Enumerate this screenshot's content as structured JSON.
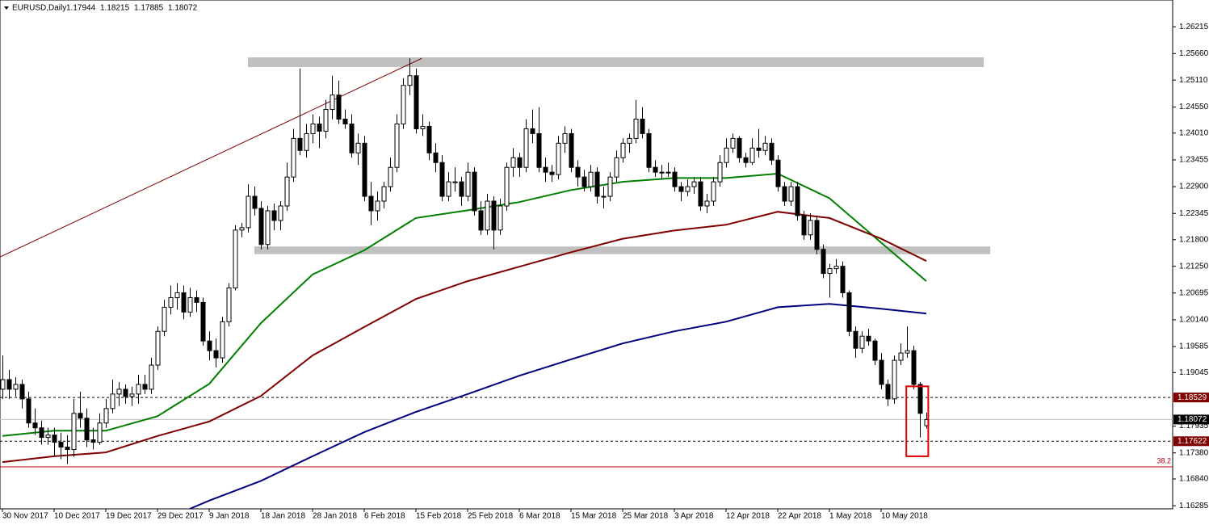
{
  "chart_data": {
    "type": "candlestick",
    "title": "EURUSD,Daily",
    "quote": [
      1.17944,
      1.18215,
      1.17885,
      1.18072
    ],
    "xlim": [
      -0.375,
      181.125
    ],
    "ylim": [
      1.1622,
      1.2677
    ],
    "yticks": [
      {
        "value": 1.26215,
        "label": "1.26215"
      },
      {
        "value": 1.2566,
        "label": "1.25660"
      },
      {
        "value": 1.2511,
        "label": "1.25110"
      },
      {
        "value": 1.2455,
        "label": "1.24550"
      },
      {
        "value": 1.2401,
        "label": "1.24010"
      },
      {
        "value": 1.23455,
        "label": "1.23455"
      },
      {
        "value": 1.229,
        "label": "1.22900"
      },
      {
        "value": 1.22345,
        "label": "1.22345"
      },
      {
        "value": 1.218,
        "label": "1.21800"
      },
      {
        "value": 1.2125,
        "label": "1.21250"
      },
      {
        "value": 1.20695,
        "label": "1.20695"
      },
      {
        "value": 1.2014,
        "label": "1.20140"
      },
      {
        "value": 1.19585,
        "label": "1.19585"
      },
      {
        "value": 1.19045,
        "label": "1.19045"
      },
      {
        "value": 1.17935,
        "label": "1.17935"
      },
      {
        "value": 1.1738,
        "label": "1.17380"
      },
      {
        "value": 1.1684,
        "label": "1.16840"
      },
      {
        "value": 1.16285,
        "label": "1.16285"
      }
    ],
    "xticks": [
      {
        "value": 0,
        "label": "30 Nov 2017"
      },
      {
        "value": 8,
        "label": "10 Dec 2017"
      },
      {
        "value": 16,
        "label": "19 Dec 2017"
      },
      {
        "value": 24,
        "label": "29 Dec 2017"
      },
      {
        "value": 32,
        "label": "9 Jan 2018"
      },
      {
        "value": 40,
        "label": "18 Jan 2018"
      },
      {
        "value": 48,
        "label": "28 Jan 2018"
      },
      {
        "value": 56,
        "label": "6 Feb 2018"
      },
      {
        "value": 64,
        "label": "15 Feb 2018"
      },
      {
        "value": 72,
        "label": "25 Feb 2018"
      },
      {
        "value": 80,
        "label": "6 Mar 2018"
      },
      {
        "value": 88,
        "label": "15 Mar 2018"
      },
      {
        "value": 96,
        "label": "25 Mar 2018"
      },
      {
        "value": 104,
        "label": "3 Apr 2018"
      },
      {
        "value": 112,
        "label": "12 Apr 2018"
      },
      {
        "value": 120,
        "label": "22 Apr 2018"
      },
      {
        "value": 128,
        "label": "1 May 2018"
      },
      {
        "value": 136,
        "label": "10 May 2018"
      }
    ],
    "ohlc": [
      [
        1.187,
        1.194,
        1.185,
        1.189
      ],
      [
        1.189,
        1.191,
        1.185,
        1.187
      ],
      [
        1.187,
        1.1895,
        1.1855,
        1.188
      ],
      [
        1.188,
        1.189,
        1.183,
        1.185
      ],
      [
        1.185,
        1.1865,
        1.179,
        1.18
      ],
      [
        1.18,
        1.183,
        1.1775,
        1.179
      ],
      [
        1.179,
        1.1805,
        1.1755,
        1.177
      ],
      [
        1.177,
        1.179,
        1.1755,
        1.1775
      ],
      [
        1.1775,
        1.179,
        1.173,
        1.176
      ],
      [
        1.176,
        1.178,
        1.1725,
        1.175
      ],
      [
        1.175,
        1.1775,
        1.1715,
        1.1745
      ],
      [
        1.1745,
        1.185,
        1.173,
        1.182
      ],
      [
        1.182,
        1.1865,
        1.179,
        1.181
      ],
      [
        1.181,
        1.183,
        1.175,
        1.1765
      ],
      [
        1.1765,
        1.179,
        1.1745,
        1.176
      ],
      [
        1.176,
        1.182,
        1.1755,
        1.18
      ],
      [
        1.18,
        1.185,
        1.179,
        1.183
      ],
      [
        1.183,
        1.189,
        1.182,
        1.186
      ],
      [
        1.186,
        1.1885,
        1.1835,
        1.187
      ],
      [
        1.187,
        1.188,
        1.184,
        1.1855
      ],
      [
        1.1855,
        1.1875,
        1.1835,
        1.186
      ],
      [
        1.186,
        1.19,
        1.184,
        1.188
      ],
      [
        1.188,
        1.19,
        1.186,
        1.187
      ],
      [
        1.187,
        1.1935,
        1.186,
        1.192
      ],
      [
        1.192,
        1.2,
        1.191,
        1.199
      ],
      [
        1.199,
        1.2055,
        1.198,
        1.204
      ],
      [
        1.204,
        1.2085,
        1.2025,
        1.206
      ],
      [
        1.206,
        1.209,
        1.2035,
        1.207
      ],
      [
        1.207,
        1.2085,
        1.2015,
        1.203
      ],
      [
        1.203,
        1.208,
        1.202,
        1.206
      ],
      [
        1.206,
        1.2075,
        1.203,
        1.205
      ],
      [
        1.205,
        1.206,
        1.196,
        1.197
      ],
      [
        1.197,
        1.199,
        1.193,
        1.195
      ],
      [
        1.195,
        1.1975,
        1.1915,
        1.1935
      ],
      [
        1.1935,
        1.202,
        1.1925,
        1.201
      ],
      [
        1.201,
        1.209,
        1.2,
        1.208
      ],
      [
        1.208,
        1.221,
        1.2075,
        1.22
      ],
      [
        1.22,
        1.2215,
        1.2185,
        1.2205
      ],
      [
        1.2205,
        1.2295,
        1.2195,
        1.227
      ],
      [
        1.227,
        1.229,
        1.223,
        1.2245
      ],
      [
        1.2245,
        1.226,
        1.216,
        1.217
      ],
      [
        1.217,
        1.225,
        1.216,
        1.224
      ],
      [
        1.224,
        1.2255,
        1.22,
        1.222
      ],
      [
        1.222,
        1.226,
        1.22,
        1.225
      ],
      [
        1.225,
        1.234,
        1.224,
        1.231
      ],
      [
        1.231,
        1.241,
        1.23,
        1.239
      ],
      [
        1.239,
        1.2535,
        1.2355,
        1.2365
      ],
      [
        1.2365,
        1.242,
        1.235,
        1.24
      ],
      [
        1.24,
        1.244,
        1.238,
        1.242
      ],
      [
        1.242,
        1.2435,
        1.237,
        1.2405
      ],
      [
        1.2405,
        1.247,
        1.239,
        1.245
      ],
      [
        1.245,
        1.252,
        1.243,
        1.248
      ],
      [
        1.248,
        1.251,
        1.242,
        1.243
      ],
      [
        1.243,
        1.245,
        1.241,
        1.242
      ],
      [
        1.242,
        1.244,
        1.235,
        1.236
      ],
      [
        1.236,
        1.24,
        1.2335,
        1.238
      ],
      [
        1.238,
        1.2395,
        1.226,
        1.227
      ],
      [
        1.227,
        1.23,
        1.221,
        1.224
      ],
      [
        1.224,
        1.228,
        1.222,
        1.226
      ],
      [
        1.226,
        1.23,
        1.2245,
        1.229
      ],
      [
        1.229,
        1.235,
        1.228,
        1.233
      ],
      [
        1.233,
        1.244,
        1.232,
        1.242
      ],
      [
        1.242,
        1.2515,
        1.241,
        1.25
      ],
      [
        1.25,
        1.2556,
        1.248,
        1.252
      ],
      [
        1.252,
        1.2535,
        1.24,
        1.241
      ],
      [
        1.241,
        1.244,
        1.2395,
        1.2415
      ],
      [
        1.2415,
        1.2425,
        1.2345,
        1.236
      ],
      [
        1.236,
        1.238,
        1.232,
        1.234
      ],
      [
        1.234,
        1.2355,
        1.226,
        1.227
      ],
      [
        1.227,
        1.232,
        1.226,
        1.23
      ],
      [
        1.23,
        1.233,
        1.228,
        1.23
      ],
      [
        1.23,
        1.231,
        1.225,
        1.227
      ],
      [
        1.227,
        1.234,
        1.226,
        1.232
      ],
      [
        1.232,
        1.233,
        1.223,
        1.224
      ],
      [
        1.224,
        1.226,
        1.219,
        1.22
      ],
      [
        1.22,
        1.2275,
        1.219,
        1.226
      ],
      [
        1.226,
        1.227,
        1.216,
        1.22
      ],
      [
        1.22,
        1.2265,
        1.219,
        1.225
      ],
      [
        1.225,
        1.234,
        1.224,
        1.233
      ],
      [
        1.233,
        1.237,
        1.231,
        1.235
      ],
      [
        1.235,
        1.236,
        1.231,
        1.233
      ],
      [
        1.233,
        1.243,
        1.232,
        1.241
      ],
      [
        1.241,
        1.245,
        1.238,
        1.24
      ],
      [
        1.24,
        1.2455,
        1.232,
        1.233
      ],
      [
        1.233,
        1.235,
        1.23,
        1.232
      ],
      [
        1.232,
        1.2335,
        1.23,
        1.2315
      ],
      [
        1.2315,
        1.2395,
        1.2305,
        1.238
      ],
      [
        1.238,
        1.2415,
        1.236,
        1.24
      ],
      [
        1.24,
        1.241,
        1.232,
        1.233
      ],
      [
        1.233,
        1.2345,
        1.229,
        1.231
      ],
      [
        1.231,
        1.2325,
        1.228,
        1.229
      ],
      [
        1.229,
        1.2335,
        1.228,
        1.232
      ],
      [
        1.232,
        1.233,
        1.2255,
        1.227
      ],
      [
        1.227,
        1.229,
        1.2245,
        1.227
      ],
      [
        1.227,
        1.232,
        1.226,
        1.231
      ],
      [
        1.231,
        1.2365,
        1.23,
        1.235
      ],
      [
        1.235,
        1.239,
        1.234,
        1.238
      ],
      [
        1.238,
        1.24,
        1.236,
        1.239
      ],
      [
        1.239,
        1.247,
        1.238,
        1.243
      ],
      [
        1.243,
        1.2455,
        1.239,
        1.24
      ],
      [
        1.24,
        1.241,
        1.232,
        1.233
      ],
      [
        1.233,
        1.2345,
        1.231,
        1.232
      ],
      [
        1.232,
        1.2335,
        1.2305,
        1.232
      ],
      [
        1.232,
        1.234,
        1.231,
        1.232
      ],
      [
        1.232,
        1.233,
        1.228,
        1.229
      ],
      [
        1.229,
        1.23,
        1.226,
        1.228
      ],
      [
        1.228,
        1.2305,
        1.227,
        1.229
      ],
      [
        1.229,
        1.231,
        1.2275,
        1.23
      ],
      [
        1.23,
        1.231,
        1.224,
        1.225
      ],
      [
        1.225,
        1.2275,
        1.2235,
        1.226
      ],
      [
        1.226,
        1.231,
        1.225,
        1.23
      ],
      [
        1.23,
        1.2355,
        1.229,
        1.234
      ],
      [
        1.234,
        1.239,
        1.233,
        1.237
      ],
      [
        1.237,
        1.24,
        1.236,
        1.239
      ],
      [
        1.239,
        1.2395,
        1.234,
        1.235
      ],
      [
        1.235,
        1.236,
        1.233,
        1.234
      ],
      [
        1.234,
        1.239,
        1.2335,
        1.237
      ],
      [
        1.237,
        1.241,
        1.235,
        1.2365
      ],
      [
        1.2365,
        1.2395,
        1.2355,
        1.238
      ],
      [
        1.238,
        1.239,
        1.2335,
        1.2345
      ],
      [
        1.2345,
        1.2355,
        1.228,
        1.229
      ],
      [
        1.229,
        1.23,
        1.225,
        1.226
      ],
      [
        1.226,
        1.23,
        1.225,
        1.229
      ],
      [
        1.229,
        1.23,
        1.222,
        1.223
      ],
      [
        1.223,
        1.224,
        1.218,
        1.219
      ],
      [
        1.219,
        1.2235,
        1.218,
        1.222
      ],
      [
        1.222,
        1.223,
        1.215,
        1.216
      ],
      [
        1.216,
        1.217,
        1.21,
        1.211
      ],
      [
        1.211,
        1.213,
        1.206,
        1.212
      ],
      [
        1.212,
        1.214,
        1.211,
        1.2125
      ],
      [
        1.2125,
        1.2135,
        1.206,
        1.207
      ],
      [
        1.207,
        1.2075,
        1.198,
        1.199
      ],
      [
        1.199,
        1.2,
        1.1935,
        1.1955
      ],
      [
        1.1955,
        1.199,
        1.1945,
        1.198
      ],
      [
        1.198,
        1.1995,
        1.196,
        1.197
      ],
      [
        1.197,
        1.1975,
        1.192,
        1.193
      ],
      [
        1.193,
        1.1945,
        1.187,
        1.188
      ],
      [
        1.188,
        1.189,
        1.1835,
        1.185
      ],
      [
        1.185,
        1.194,
        1.184,
        1.193
      ],
      [
        1.193,
        1.1965,
        1.192,
        1.1945
      ],
      [
        1.1945,
        1.2,
        1.1935,
        1.195
      ],
      [
        1.195,
        1.196,
        1.187,
        1.188
      ],
      [
        1.188,
        1.1885,
        1.177,
        1.182
      ],
      [
        1.17944,
        1.18215,
        1.17885,
        1.18072
      ]
    ],
    "series": [
      {
        "color": "#007f00",
        "x": [
          0,
          8,
          16,
          24,
          32,
          40,
          48,
          56,
          64,
          72,
          80,
          88,
          96,
          104,
          112,
          120,
          128,
          136,
          143
        ],
        "values": [
          1.1773,
          1.1784,
          1.1784,
          1.1814,
          1.1881,
          1.2007,
          1.2108,
          1.2158,
          1.2225,
          1.2241,
          1.2258,
          1.2283,
          1.23,
          1.2308,
          1.2308,
          1.2317,
          1.2266,
          1.2174,
          1.2094
        ]
      },
      {
        "color": "#800000",
        "x": [
          0,
          8,
          16,
          24,
          32,
          40,
          48,
          56,
          64,
          72,
          80,
          88,
          96,
          104,
          112,
          120,
          128,
          136,
          143
        ],
        "values": [
          1.1719,
          1.1731,
          1.1739,
          1.1773,
          1.1803,
          1.1856,
          1.194,
          1.1999,
          1.2057,
          1.2094,
          1.2124,
          1.2154,
          1.2182,
          1.2199,
          1.2211,
          1.2238,
          1.2225,
          1.2182,
          1.2136
        ]
      },
      {
        "color": "#00007f",
        "x": [
          29,
          32,
          40,
          48,
          56,
          64,
          72,
          80,
          88,
          96,
          104,
          112,
          120,
          128,
          136,
          143
        ],
        "values": [
          1.1622,
          1.1639,
          1.168,
          1.1731,
          1.1781,
          1.1823,
          1.186,
          1.1898,
          1.1932,
          1.1965,
          1.199,
          1.201,
          1.204,
          1.2047,
          1.2037,
          1.2027
        ]
      }
    ],
    "zones": [
      {
        "x": [
          38,
          151.9
        ],
        "values": [
          1.2558,
          1.2538
        ],
        "color": "#c0c0c0"
      },
      {
        "x": [
          39,
          152.9
        ],
        "values": [
          1.2166,
          1.215
        ],
        "color": "#c0c0c0"
      }
    ],
    "trendline": {
      "x": [
        -0.4,
        64.9
      ],
      "values": [
        1.2144,
        1.2556
      ],
      "color": "#800000"
    },
    "highlight_box": {
      "x": [
        139.9,
        143.3
      ],
      "values": [
        1.1876,
        1.1731
      ],
      "color": "#e00000"
    },
    "levels": [
      {
        "value": 1.18529,
        "label": "1.18529",
        "style": "dashed",
        "color": "#800000"
      },
      {
        "value": 1.18072,
        "label": "1.18072",
        "style": "solid",
        "color": "#c0c0c0"
      },
      {
        "value": 1.17622,
        "label": "1.17622",
        "style": "dashed",
        "color": "#800000"
      }
    ],
    "fib_level": {
      "value": 1.1709,
      "label": "38.2",
      "color": "#c00000"
    }
  }
}
